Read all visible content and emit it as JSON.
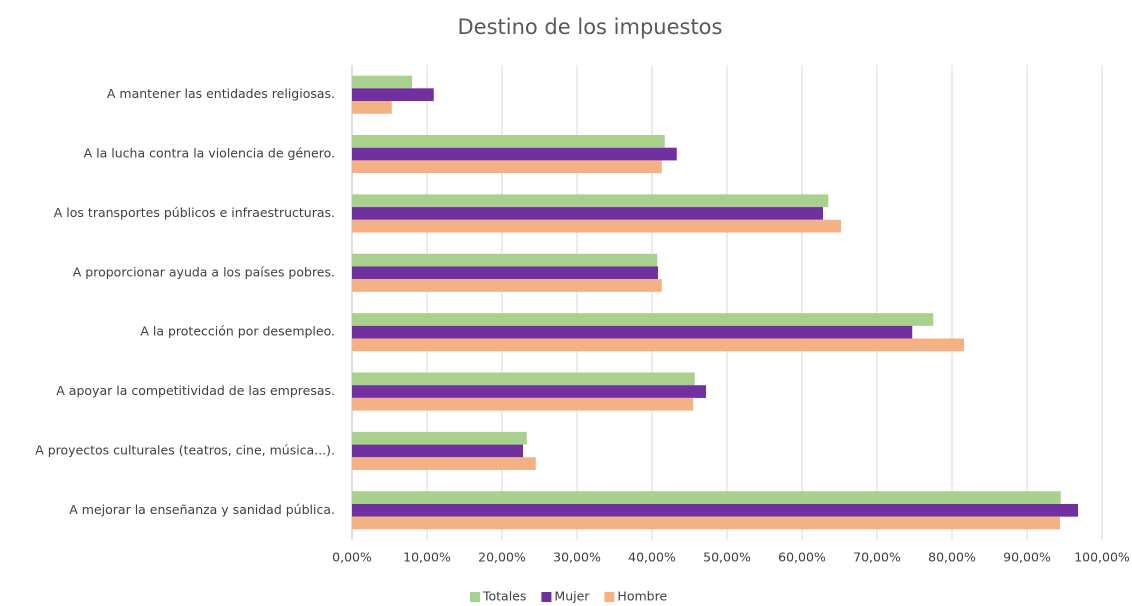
{
  "chart_data": {
    "type": "barh",
    "title": "Destino de los impuestos",
    "categories": [
      "A mantener las entidades religiosas.",
      "A la lucha contra la violencia de género.",
      "A los transportes públicos e infraestructuras.",
      "A proporcionar ayuda a los países pobres.",
      "A la protección por desempleo.",
      "A apoyar la competitividad de las empresas.",
      "A proyectos culturales (teatros, cine, música...).",
      "A mejorar la enseñanza y sanidad pública."
    ],
    "series": [
      {
        "name": "Totales",
        "color": "#a9d18e",
        "values": [
          8.0,
          41.7,
          63.5,
          40.7,
          77.5,
          45.7,
          23.3,
          94.5
        ]
      },
      {
        "name": "Mujer",
        "color": "#7030a0",
        "values": [
          10.9,
          43.3,
          62.8,
          40.8,
          74.7,
          47.2,
          22.8,
          96.8
        ]
      },
      {
        "name": "Hombre",
        "color": "#f4b183",
        "values": [
          5.3,
          41.3,
          65.2,
          41.3,
          81.6,
          45.5,
          24.5,
          94.4
        ]
      }
    ],
    "xlim": [
      0,
      100
    ],
    "xticks": [
      {
        "value": 0,
        "label": "0,00%"
      },
      {
        "value": 10,
        "label": "10,00%"
      },
      {
        "value": 20,
        "label": "20,00%"
      },
      {
        "value": 30,
        "label": "30,00%"
      },
      {
        "value": 40,
        "label": "40,00%"
      },
      {
        "value": 50,
        "label": "50,00%"
      },
      {
        "value": 60,
        "label": "60,00%"
      },
      {
        "value": 70,
        "label": "70,00%"
      },
      {
        "value": 80,
        "label": "80,00%"
      },
      {
        "value": 90,
        "label": "90,00%"
      },
      {
        "value": 100,
        "label": "100,00%"
      }
    ],
    "grid": true,
    "legend": "bottom"
  }
}
